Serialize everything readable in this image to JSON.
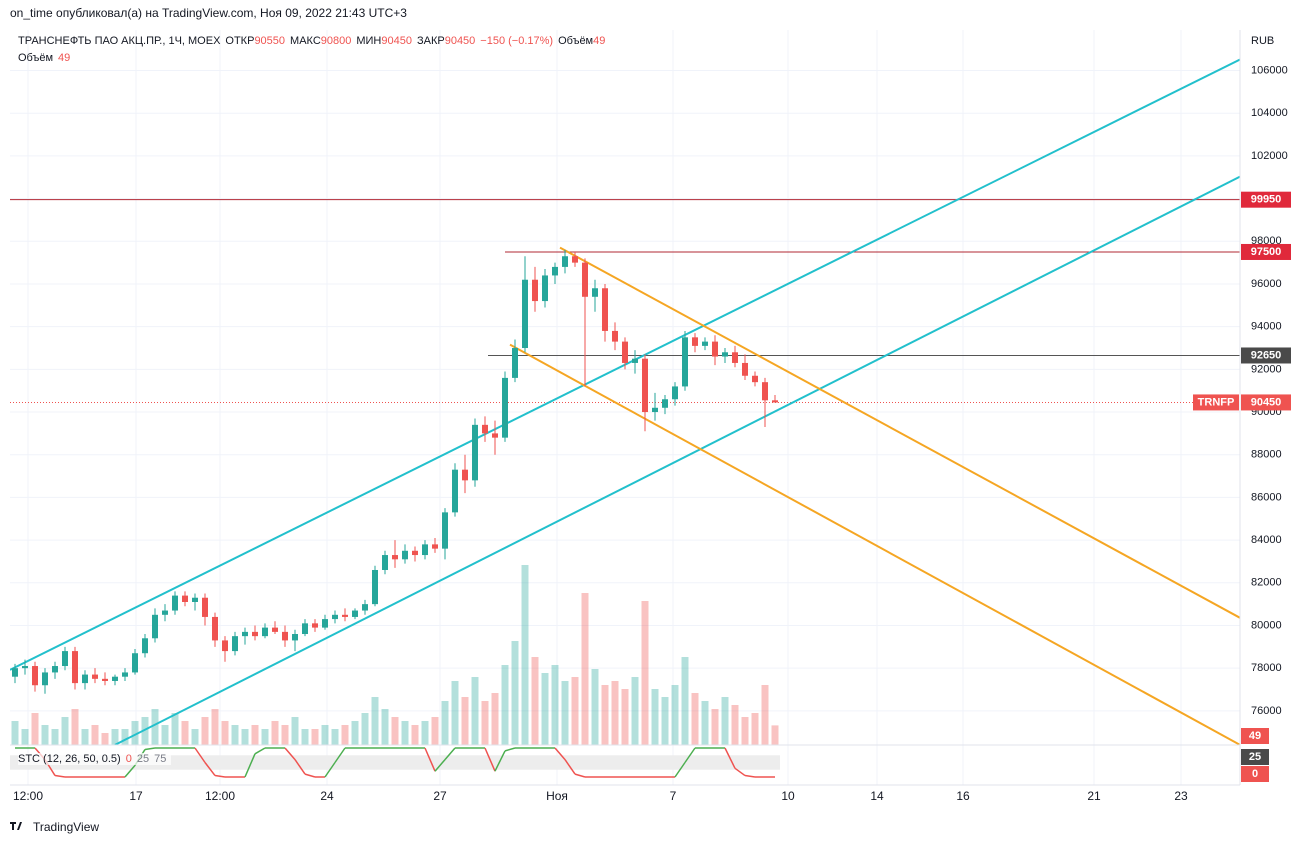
{
  "chart_data": {
    "type": "candlestick",
    "header": "on_time опубликовал(а) на TradingView.com, Ноя 09, 2022 21:43 UTC+3",
    "symbol": "ТРАНСНЕФТЬ ПАО АКЦ.ПР., 1Ч, MOEX",
    "legend": [
      {
        "label": "ОТКР",
        "value": 90550
      },
      {
        "label": "МАКС",
        "value": 90800
      },
      {
        "label": "МИН",
        "value": 90450
      },
      {
        "label": "ЗАКР",
        "value": 90450
      }
    ],
    "change": "−150 (−0.17%)",
    "volume_label": "Объём",
    "volume_value": 49,
    "currency": "RUB",
    "symbol_badge": "TRNFP",
    "footer": "TradingView",
    "xlim": [
      0,
      123
    ],
    "xticks": [
      {
        "value": 1.8,
        "label": "12:00"
      },
      {
        "value": 12.6,
        "label": "17"
      },
      {
        "value": 21,
        "label": "12:00"
      },
      {
        "value": 31.7,
        "label": "24"
      },
      {
        "value": 43,
        "label": "27"
      },
      {
        "value": 54.7,
        "label": "Ноя"
      },
      {
        "value": 66.3,
        "label": "7"
      },
      {
        "value": 77.8,
        "label": "10"
      },
      {
        "value": 86.7,
        "label": "14"
      },
      {
        "value": 95.3,
        "label": "16"
      },
      {
        "value": 108.4,
        "label": "21"
      },
      {
        "value": 117.1,
        "label": "23"
      }
    ],
    "ylim": [
      74400,
      107900
    ],
    "yticks": [
      76000,
      78000,
      80000,
      82000,
      84000,
      86000,
      88000,
      90000,
      92000,
      94000,
      96000,
      98000,
      100000,
      102000,
      104000,
      106000
    ],
    "grid": true,
    "up_color": "#26a69a",
    "down_color": "#ef5350",
    "candles": [
      [
        77600,
        78200,
        77300,
        78000
      ],
      [
        78000,
        78400,
        77700,
        78100
      ],
      [
        78100,
        78300,
        76900,
        77200
      ],
      [
        77200,
        78000,
        76800,
        77800
      ],
      [
        77800,
        78300,
        77500,
        78100
      ],
      [
        78100,
        79000,
        77900,
        78800
      ],
      [
        78800,
        79000,
        77000,
        77300
      ],
      [
        77300,
        77900,
        77000,
        77700
      ],
      [
        77700,
        78000,
        77300,
        77500
      ],
      [
        77500,
        77800,
        77200,
        77400
      ],
      [
        77400,
        77700,
        77200,
        77600
      ],
      [
        77600,
        78000,
        77400,
        77800
      ],
      [
        77800,
        78900,
        77700,
        78700
      ],
      [
        78700,
        79600,
        78500,
        79400
      ],
      [
        79400,
        80800,
        79200,
        80500
      ],
      [
        80500,
        81000,
        80200,
        80700
      ],
      [
        80700,
        81600,
        80500,
        81400
      ],
      [
        81400,
        81600,
        80900,
        81100
      ],
      [
        81100,
        81500,
        80700,
        81300
      ],
      [
        81300,
        81500,
        80000,
        80400
      ],
      [
        80400,
        80600,
        79000,
        79300
      ],
      [
        79300,
        79500,
        78300,
        78800
      ],
      [
        78800,
        79700,
        78600,
        79500
      ],
      [
        79500,
        79900,
        79100,
        79700
      ],
      [
        79700,
        80000,
        79300,
        79500
      ],
      [
        79500,
        80100,
        79400,
        79900
      ],
      [
        79900,
        80200,
        79600,
        79700
      ],
      [
        79700,
        80000,
        79000,
        79300
      ],
      [
        79300,
        79800,
        78800,
        79600
      ],
      [
        79600,
        80300,
        79500,
        80100
      ],
      [
        80100,
        80300,
        79700,
        79900
      ],
      [
        79900,
        80500,
        79800,
        80300
      ],
      [
        80300,
        80700,
        80100,
        80500
      ],
      [
        80500,
        80800,
        80200,
        80400
      ],
      [
        80400,
        80800,
        80300,
        80700
      ],
      [
        80700,
        81200,
        80500,
        81000
      ],
      [
        81000,
        82800,
        80900,
        82600
      ],
      [
        82600,
        83500,
        82400,
        83300
      ],
      [
        83300,
        84000,
        82700,
        83100
      ],
      [
        83100,
        83800,
        82900,
        83500
      ],
      [
        83500,
        83700,
        83000,
        83300
      ],
      [
        83300,
        84000,
        83100,
        83800
      ],
      [
        83800,
        84100,
        83400,
        83600
      ],
      [
        83600,
        85500,
        83100,
        85300
      ],
      [
        85300,
        87600,
        85100,
        87300
      ],
      [
        87300,
        88000,
        86200,
        86800
      ],
      [
        86800,
        89700,
        86500,
        89400
      ],
      [
        89400,
        89800,
        88600,
        89000
      ],
      [
        89000,
        89600,
        88000,
        88800
      ],
      [
        88800,
        91900,
        88600,
        91600
      ],
      [
        91600,
        93400,
        91400,
        93000
      ],
      [
        93000,
        97300,
        92800,
        96200
      ],
      [
        96200,
        96800,
        94700,
        95200
      ],
      [
        95200,
        96700,
        94900,
        96400
      ],
      [
        96400,
        97000,
        96000,
        96800
      ],
      [
        96800,
        97600,
        96500,
        97300
      ],
      [
        97300,
        97500,
        96800,
        97000
      ],
      [
        97000,
        97200,
        91200,
        95400
      ],
      [
        95400,
        96200,
        94700,
        95800
      ],
      [
        95800,
        96000,
        93300,
        93800
      ],
      [
        93800,
        94200,
        92900,
        93300
      ],
      [
        93300,
        93500,
        92000,
        92300
      ],
      [
        92300,
        92900,
        91800,
        92500
      ],
      [
        92500,
        92700,
        89100,
        90000
      ],
      [
        90000,
        90900,
        89600,
        90200
      ],
      [
        90200,
        90800,
        89900,
        90600
      ],
      [
        90600,
        91400,
        90300,
        91200
      ],
      [
        91200,
        93800,
        91000,
        93500
      ],
      [
        93500,
        93700,
        92800,
        93100
      ],
      [
        93100,
        93500,
        92900,
        93300
      ],
      [
        93300,
        93600,
        92200,
        92600
      ],
      [
        92600,
        93000,
        92300,
        92800
      ],
      [
        92800,
        93100,
        92100,
        92300
      ],
      [
        92300,
        92700,
        91500,
        91700
      ],
      [
        91700,
        91900,
        91200,
        91400
      ],
      [
        91400,
        91600,
        89300,
        90550
      ],
      [
        90550,
        90800,
        90450,
        90450
      ]
    ],
    "volume": {
      "vlim": [
        0,
        1000
      ],
      "values": [
        60,
        40,
        80,
        50,
        40,
        70,
        90,
        40,
        50,
        30,
        40,
        40,
        60,
        70,
        90,
        50,
        80,
        60,
        40,
        70,
        90,
        60,
        50,
        40,
        50,
        40,
        60,
        50,
        70,
        40,
        40,
        50,
        40,
        50,
        60,
        80,
        120,
        90,
        70,
        60,
        50,
        60,
        70,
        110,
        160,
        120,
        170,
        110,
        130,
        200,
        260,
        450,
        220,
        180,
        200,
        160,
        170,
        380,
        190,
        150,
        160,
        140,
        170,
        360,
        140,
        120,
        150,
        220,
        130,
        110,
        90,
        120,
        100,
        70,
        80,
        150,
        49
      ]
    },
    "levels": [
      {
        "value": 99950,
        "color": "#b22833",
        "start": 0,
        "style": "solid"
      },
      {
        "value": 97500,
        "color": "#b22833",
        "start": 49.5,
        "style": "solid"
      },
      {
        "value": 92650,
        "color": "#555555",
        "start": 47.8,
        "style": "solid"
      },
      {
        "value": 90450,
        "color": "#ef5350",
        "start": 0,
        "style": "dotted"
      }
    ],
    "level_badge_colors": [
      "#e0293b",
      "#e0293b",
      "#4a4a4a",
      "#ef5350"
    ],
    "trendlines": [
      {
        "x": [
          0,
          123
        ],
        "y": [
          77922,
          106516
        ],
        "color": "#22c0cc"
      },
      {
        "x": [
          10.5,
          123
        ],
        "y": [
          74406,
          101031
        ],
        "color": "#22c0cc"
      },
      {
        "x": [
          55,
          123
        ],
        "y": [
          97703,
          80359
        ],
        "color": "#f5a623"
      },
      {
        "x": [
          50,
          123
        ],
        "y": [
          93156,
          74406
        ],
        "color": "#f5a623"
      }
    ],
    "stc": {
      "label": "STC (12, 26, 50, 0.5)",
      "legend_values": [
        0,
        25,
        75
      ],
      "ylim": [
        0,
        100
      ],
      "values": [
        100,
        100,
        100,
        60,
        5,
        0,
        0,
        0,
        0,
        0,
        0,
        0,
        40,
        95,
        100,
        100,
        100,
        100,
        100,
        50,
        5,
        0,
        0,
        0,
        80,
        100,
        100,
        100,
        60,
        10,
        0,
        0,
        50,
        100,
        100,
        100,
        100,
        100,
        100,
        100,
        100,
        100,
        20,
        60,
        100,
        100,
        100,
        100,
        20,
        90,
        100,
        100,
        100,
        100,
        100,
        60,
        10,
        0,
        0,
        0,
        0,
        0,
        0,
        0,
        0,
        0,
        0,
        50,
        100,
        100,
        100,
        100,
        30,
        5,
        0,
        0,
        0
      ]
    }
  }
}
